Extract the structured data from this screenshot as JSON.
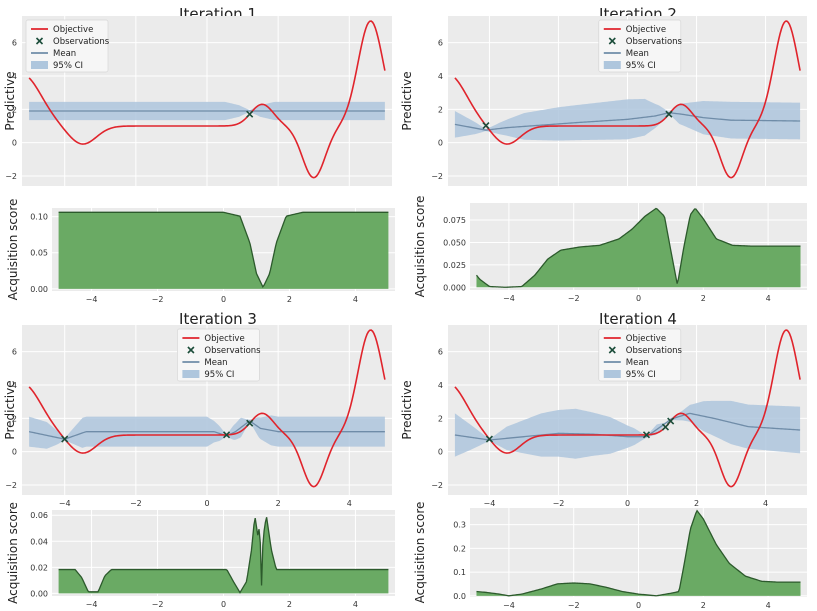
{
  "colors": {
    "objective": "#e0242c",
    "mean": "#6f8ca8",
    "ci": "#aec6dd",
    "observation": "#1c4d3a",
    "acq_fill": "#6aaa64",
    "acq_line": "#2c5a2c",
    "panel_bg": "#ebebeb",
    "grid": "#ffffff"
  },
  "legend": {
    "objective": "Objective",
    "observations": "Observations",
    "mean": "Mean",
    "ci": "95% CI"
  },
  "chart_data": [
    {
      "type": "line",
      "title": "Iteration 1",
      "ylabel_top": "Predictive",
      "ylabel_bottom": "Acquisition score",
      "xlim": [
        -5.2,
        5.2
      ],
      "ylim_top": [
        -2.6,
        7.6
      ],
      "yticks_top": [
        -2,
        0,
        2,
        4,
        6
      ],
      "xticks": [
        -4,
        -2,
        0,
        2,
        4
      ],
      "legend_position": "upper-left",
      "observations_x": [
        1.2
      ],
      "acq_ylim": [
        -0.003,
        0.112
      ],
      "acq_yticks": [
        0.0,
        0.05,
        0.1
      ],
      "acq_labels": [
        "0.00",
        "0.05",
        "0.10"
      ],
      "acq_scale": 0.106,
      "acq_points": [
        [
          -5,
          1
        ],
        [
          0,
          1
        ],
        [
          0.5,
          0.95
        ],
        [
          0.8,
          0.6
        ],
        [
          1.0,
          0.2
        ],
        [
          1.2,
          0.02
        ],
        [
          1.4,
          0.2
        ],
        [
          1.6,
          0.6
        ],
        [
          1.9,
          0.95
        ],
        [
          2.4,
          1
        ],
        [
          5,
          1
        ]
      ],
      "gp_mean_points": [
        [
          -5,
          1.9
        ],
        [
          5,
          1.9
        ]
      ],
      "gp_std_points": [
        [
          -5,
          0.55
        ],
        [
          0.5,
          0.55
        ],
        [
          0.9,
          0.35
        ],
        [
          1.2,
          0.05
        ],
        [
          1.5,
          0.35
        ],
        [
          1.9,
          0.55
        ],
        [
          5,
          0.55
        ]
      ],
      "show_xticks_top": false
    },
    {
      "type": "line",
      "title": "Iteration 2",
      "ylabel_top": "Predictive",
      "ylabel_bottom": "Acquisition score",
      "xlim": [
        -5.2,
        5.2
      ],
      "ylim_top": [
        -2.6,
        7.6
      ],
      "yticks_top": [
        -2,
        0,
        2,
        4,
        6
      ],
      "xticks": [
        -4,
        -2,
        0,
        2,
        4
      ],
      "legend_position": "upper-center",
      "observations_x": [
        -4.1,
        1.2
      ],
      "acq_ylim": [
        -0.003,
        0.094
      ],
      "acq_yticks": [
        0.0,
        0.025,
        0.05,
        0.075
      ],
      "acq_labels": [
        "0.000",
        "0.025",
        "0.050",
        "0.075"
      ],
      "acq_scale": 0.09,
      "acq_points": [
        [
          -5,
          0.15
        ],
        [
          -4.9,
          0.1
        ],
        [
          -4.6,
          0.01
        ],
        [
          -4.1,
          0
        ],
        [
          -3.6,
          0.01
        ],
        [
          -3.2,
          0.15
        ],
        [
          -2.8,
          0.35
        ],
        [
          -2.4,
          0.46
        ],
        [
          -1.8,
          0.5
        ],
        [
          -1.2,
          0.52
        ],
        [
          -0.6,
          0.6
        ],
        [
          -0.2,
          0.72
        ],
        [
          0.2,
          0.88
        ],
        [
          0.55,
          0.98
        ],
        [
          0.8,
          0.88
        ],
        [
          1.0,
          0.45
        ],
        [
          1.2,
          0.03
        ],
        [
          1.4,
          0.5
        ],
        [
          1.6,
          0.9
        ],
        [
          1.75,
          0.98
        ],
        [
          2.0,
          0.85
        ],
        [
          2.4,
          0.6
        ],
        [
          2.9,
          0.52
        ],
        [
          3.5,
          0.51
        ],
        [
          5,
          0.51
        ]
      ],
      "gp_mean_points": [
        [
          -5,
          1.1
        ],
        [
          -4.1,
          0.75
        ],
        [
          -3.5,
          0.9
        ],
        [
          -2.5,
          1.05
        ],
        [
          -1.5,
          1.2
        ],
        [
          0,
          1.4
        ],
        [
          0.8,
          1.6
        ],
        [
          1.2,
          1.8
        ],
        [
          1.6,
          1.7
        ],
        [
          2.2,
          1.5
        ],
        [
          3,
          1.35
        ],
        [
          5,
          1.3
        ]
      ],
      "gp_std_points": [
        [
          -5,
          0.8
        ],
        [
          -4.4,
          0.35
        ],
        [
          -4.1,
          0.05
        ],
        [
          -3.7,
          0.35
        ],
        [
          -3,
          0.8
        ],
        [
          -2,
          1.0
        ],
        [
          -1,
          1.1
        ],
        [
          0,
          1.2
        ],
        [
          0.5,
          1.1
        ],
        [
          0.9,
          0.6
        ],
        [
          1.2,
          0.05
        ],
        [
          1.5,
          0.6
        ],
        [
          2.2,
          1.0
        ],
        [
          3,
          1.1
        ],
        [
          5,
          1.1
        ]
      ],
      "show_xticks_top": false
    },
    {
      "type": "line",
      "title": "Iteration 3",
      "ylabel_top": "Predictive",
      "ylabel_bottom": "Acquisition score",
      "xlim": [
        -5.2,
        5.2
      ],
      "ylim_top": [
        -2.6,
        7.6
      ],
      "yticks_top": [
        -2,
        0,
        2,
        4,
        6
      ],
      "xticks": [
        -4,
        -2,
        0,
        2,
        4
      ],
      "legend_position": "upper-center",
      "observations_x": [
        -4.0,
        0.55,
        1.2
      ],
      "acq_ylim": [
        -0.002,
        0.064
      ],
      "acq_yticks": [
        0.0,
        0.02,
        0.04,
        0.06
      ],
      "acq_labels": [
        "0.00",
        "0.02",
        "0.04",
        "0.06"
      ],
      "acq_scale": 0.061,
      "acq_points": [
        [
          -5,
          0.3
        ],
        [
          -4.5,
          0.3
        ],
        [
          -4.3,
          0.2
        ],
        [
          -4.1,
          0.02
        ],
        [
          -3.8,
          0.02
        ],
        [
          -3.6,
          0.22
        ],
        [
          -3.4,
          0.3
        ],
        [
          0.1,
          0.3
        ],
        [
          0.3,
          0.15
        ],
        [
          0.5,
          0.01
        ],
        [
          0.7,
          0.15
        ],
        [
          0.85,
          0.55
        ],
        [
          0.95,
          0.98
        ],
        [
          1.05,
          0.7
        ],
        [
          1.1,
          0.9
        ],
        [
          1.15,
          0.05
        ],
        [
          1.2,
          0.7
        ],
        [
          1.3,
          0.98
        ],
        [
          1.45,
          0.55
        ],
        [
          1.6,
          0.3
        ],
        [
          5,
          0.3
        ]
      ],
      "gp_mean_points": [
        [
          -5,
          1.2
        ],
        [
          -4,
          0.75
        ],
        [
          -3.4,
          1.2
        ],
        [
          0.2,
          1.2
        ],
        [
          0.55,
          0.95
        ],
        [
          0.8,
          1.2
        ],
        [
          1.2,
          1.85
        ],
        [
          1.5,
          1.4
        ],
        [
          2,
          1.2
        ],
        [
          5,
          1.2
        ]
      ],
      "gp_std_points": [
        [
          -5,
          0.9
        ],
        [
          -4.5,
          0.8
        ],
        [
          -4.2,
          0.4
        ],
        [
          -4.0,
          0.05
        ],
        [
          -3.8,
          0.4
        ],
        [
          -3.5,
          0.9
        ],
        [
          0.0,
          0.9
        ],
        [
          0.35,
          0.45
        ],
        [
          0.55,
          0.05
        ],
        [
          0.75,
          0.45
        ],
        [
          0.95,
          0.6
        ],
        [
          1.2,
          0.05
        ],
        [
          1.45,
          0.6
        ],
        [
          1.8,
          0.9
        ],
        [
          5,
          0.9
        ]
      ],
      "show_xticks_top": true
    },
    {
      "type": "line",
      "title": "Iteration 4",
      "ylabel_top": "Predictive",
      "ylabel_bottom": "Acquisition score",
      "xlim": [
        -5.2,
        5.2
      ],
      "ylim_top": [
        -2.6,
        7.6
      ],
      "yticks_top": [
        -2,
        0,
        2,
        4,
        6
      ],
      "xticks": [
        -4,
        -2,
        0,
        2,
        4
      ],
      "legend_position": "upper-center",
      "observations_x": [
        -4.0,
        0.55,
        1.1,
        1.25
      ],
      "acq_ylim": [
        -0.005,
        0.37
      ],
      "acq_yticks": [
        0.0,
        0.1,
        0.2,
        0.3
      ],
      "acq_labels": [
        "0.0",
        "0.1",
        "0.2",
        "0.3"
      ],
      "acq_scale": 0.36,
      "acq_points": [
        [
          -5,
          0.05
        ],
        [
          -4.7,
          0.04
        ],
        [
          -4.3,
          0.02
        ],
        [
          -4.0,
          0.0
        ],
        [
          -3.6,
          0.02
        ],
        [
          -3.0,
          0.08
        ],
        [
          -2.5,
          0.14
        ],
        [
          -2.0,
          0.15
        ],
        [
          -1.5,
          0.14
        ],
        [
          -1.0,
          0.1
        ],
        [
          -0.5,
          0.05
        ],
        [
          0,
          0.02
        ],
        [
          0.55,
          0.0
        ],
        [
          1.0,
          0.03
        ],
        [
          1.25,
          0.05
        ],
        [
          1.4,
          0.35
        ],
        [
          1.6,
          0.78
        ],
        [
          1.8,
          1.0
        ],
        [
          2.0,
          0.9
        ],
        [
          2.4,
          0.6
        ],
        [
          2.8,
          0.38
        ],
        [
          3.3,
          0.23
        ],
        [
          3.8,
          0.17
        ],
        [
          4.3,
          0.16
        ],
        [
          5,
          0.16
        ]
      ],
      "gp_mean_points": [
        [
          -5,
          1.0
        ],
        [
          -4,
          0.7
        ],
        [
          -3,
          0.9
        ],
        [
          -2,
          1.1
        ],
        [
          -1,
          1.05
        ],
        [
          0,
          0.9
        ],
        [
          0.55,
          0.9
        ],
        [
          1.1,
          1.7
        ],
        [
          1.25,
          1.95
        ],
        [
          1.8,
          2.3
        ],
        [
          2.5,
          2.0
        ],
        [
          3.5,
          1.5
        ],
        [
          5,
          1.3
        ]
      ],
      "gp_std_points": [
        [
          -5,
          1.3
        ],
        [
          -4.5,
          0.7
        ],
        [
          -4.0,
          0.05
        ],
        [
          -3.5,
          0.7
        ],
        [
          -2.5,
          1.3
        ],
        [
          -1.5,
          1.5
        ],
        [
          -0.5,
          1.1
        ],
        [
          0.2,
          0.5
        ],
        [
          0.55,
          0.05
        ],
        [
          0.85,
          0.3
        ],
        [
          1.1,
          0.05
        ],
        [
          1.25,
          0.05
        ],
        [
          1.6,
          0.3
        ],
        [
          2.2,
          0.9
        ],
        [
          3,
          1.3
        ],
        [
          5,
          1.4
        ]
      ],
      "show_xticks_top": true
    }
  ]
}
